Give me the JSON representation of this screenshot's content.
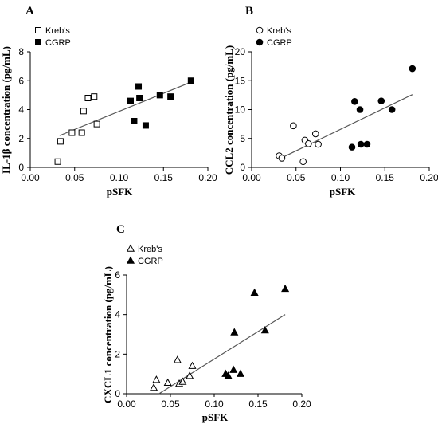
{
  "chart_data": [
    {
      "panel": "A",
      "type": "scatter",
      "xlabel": "pSFK",
      "ylabel": "IL-1β concentration (pg/mL)",
      "xlim": [
        0.0,
        0.2
      ],
      "ylim": [
        0,
        8
      ],
      "xticks": [
        "0.00",
        "0.05",
        "0.10",
        "0.15",
        "0.20"
      ],
      "yticks": [
        "0",
        "2",
        "4",
        "6",
        "8"
      ],
      "legend_position": "top-left",
      "series": [
        {
          "name": "Kreb's",
          "marker": "square-open",
          "points": [
            [
              0.031,
              0.4
            ],
            [
              0.034,
              1.8
            ],
            [
              0.047,
              2.4
            ],
            [
              0.058,
              2.4
            ],
            [
              0.06,
              3.9
            ],
            [
              0.065,
              4.8
            ],
            [
              0.072,
              4.9
            ],
            [
              0.075,
              3.0
            ]
          ]
        },
        {
          "name": "CGRP",
          "marker": "square-filled",
          "points": [
            [
              0.113,
              4.6
            ],
            [
              0.117,
              3.2
            ],
            [
              0.122,
              5.6
            ],
            [
              0.123,
              4.8
            ],
            [
              0.13,
              2.9
            ],
            [
              0.146,
              5.0
            ],
            [
              0.158,
              4.9
            ],
            [
              0.181,
              6.0
            ]
          ]
        }
      ],
      "fit_line": [
        [
          0.033,
          2.2
        ],
        [
          0.181,
          5.9
        ]
      ]
    },
    {
      "panel": "B",
      "type": "scatter",
      "xlabel": "pSFK",
      "ylabel": "CCL2 concentration (pg/mL)",
      "xlim": [
        0.0,
        0.2
      ],
      "ylim": [
        0,
        20
      ],
      "xticks": [
        "0.00",
        "0.05",
        "0.10",
        "0.15",
        "0.20"
      ],
      "yticks": [
        "0",
        "5",
        "10",
        "15",
        "20"
      ],
      "legend_position": "top-left",
      "series": [
        {
          "name": "Kreb's",
          "marker": "circle-open",
          "points": [
            [
              0.031,
              2.0
            ],
            [
              0.034,
              1.6
            ],
            [
              0.047,
              7.2
            ],
            [
              0.058,
              1.0
            ],
            [
              0.06,
              4.7
            ],
            [
              0.064,
              4.1
            ],
            [
              0.072,
              5.8
            ],
            [
              0.075,
              4.0
            ]
          ]
        },
        {
          "name": "CGRP",
          "marker": "circle-filled",
          "points": [
            [
              0.113,
              3.5
            ],
            [
              0.116,
              11.4
            ],
            [
              0.122,
              10.0
            ],
            [
              0.123,
              4.0
            ],
            [
              0.13,
              4.0
            ],
            [
              0.146,
              11.5
            ],
            [
              0.158,
              10.0
            ],
            [
              0.181,
              17.1
            ]
          ]
        }
      ],
      "fit_line": [
        [
          0.033,
          1.6
        ],
        [
          0.181,
          12.6
        ]
      ]
    },
    {
      "panel": "C",
      "type": "scatter",
      "xlabel": "pSFK",
      "ylabel": "CXCL1 concentration (pg/mL)",
      "xlim": [
        0.0,
        0.2
      ],
      "ylim": [
        0,
        6
      ],
      "xticks": [
        "0.00",
        "0.05",
        "0.10",
        "0.15",
        "0.20"
      ],
      "yticks": [
        "0",
        "2",
        "4",
        "6"
      ],
      "legend_position": "top-left",
      "series": [
        {
          "name": "Kreb's",
          "marker": "triangle-open",
          "points": [
            [
              0.031,
              0.3
            ],
            [
              0.034,
              0.7
            ],
            [
              0.047,
              0.55
            ],
            [
              0.058,
              1.7
            ],
            [
              0.06,
              0.5
            ],
            [
              0.064,
              0.6
            ],
            [
              0.072,
              0.9
            ],
            [
              0.075,
              1.4
            ]
          ]
        },
        {
          "name": "CGRP",
          "marker": "triangle-filled",
          "points": [
            [
              0.113,
              1.0
            ],
            [
              0.116,
              0.9
            ],
            [
              0.122,
              1.2
            ],
            [
              0.123,
              3.1
            ],
            [
              0.13,
              1.0
            ],
            [
              0.146,
              5.1
            ],
            [
              0.158,
              3.2
            ],
            [
              0.181,
              5.3
            ]
          ]
        }
      ],
      "fit_line": [
        [
          0.037,
          0.0
        ],
        [
          0.181,
          4.0
        ]
      ]
    }
  ]
}
